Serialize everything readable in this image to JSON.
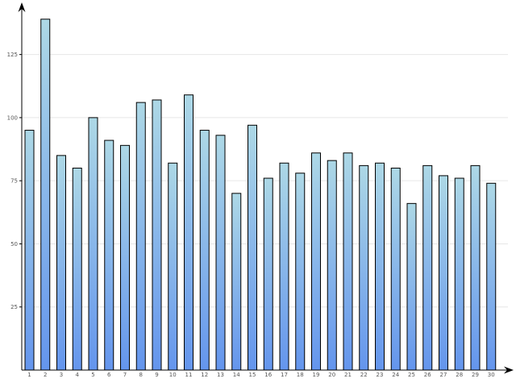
{
  "chart_data": {
    "type": "bar",
    "title": "",
    "xlabel": "",
    "ylabel": "",
    "categories": [
      "1",
      "2",
      "3",
      "4",
      "5",
      "6",
      "7",
      "8",
      "9",
      "10",
      "11",
      "12",
      "13",
      "14",
      "15",
      "16",
      "17",
      "18",
      "19",
      "20",
      "21",
      "22",
      "23",
      "24",
      "25",
      "26",
      "27",
      "28",
      "29",
      "30"
    ],
    "values": [
      95,
      139,
      85,
      80,
      100,
      91,
      89,
      106,
      107,
      82,
      109,
      95,
      93,
      70,
      97,
      76,
      82,
      78,
      86,
      83,
      86,
      81,
      82,
      80,
      66,
      81,
      77,
      76,
      81,
      74
    ],
    "ylim": [
      0,
      145
    ],
    "yticks": [
      {
        "value": 25,
        "label": "25"
      },
      {
        "value": 50,
        "label": "50"
      },
      {
        "value": 75,
        "label": "75"
      },
      {
        "value": 100,
        "label": "100"
      },
      {
        "value": 125,
        "label": "125"
      }
    ],
    "grid": true,
    "colors": {
      "bar_top": "#add8e6",
      "bar_bottom": "#6495ed",
      "bar_stroke": "#000000",
      "grid": "#e6e6e6"
    }
  }
}
